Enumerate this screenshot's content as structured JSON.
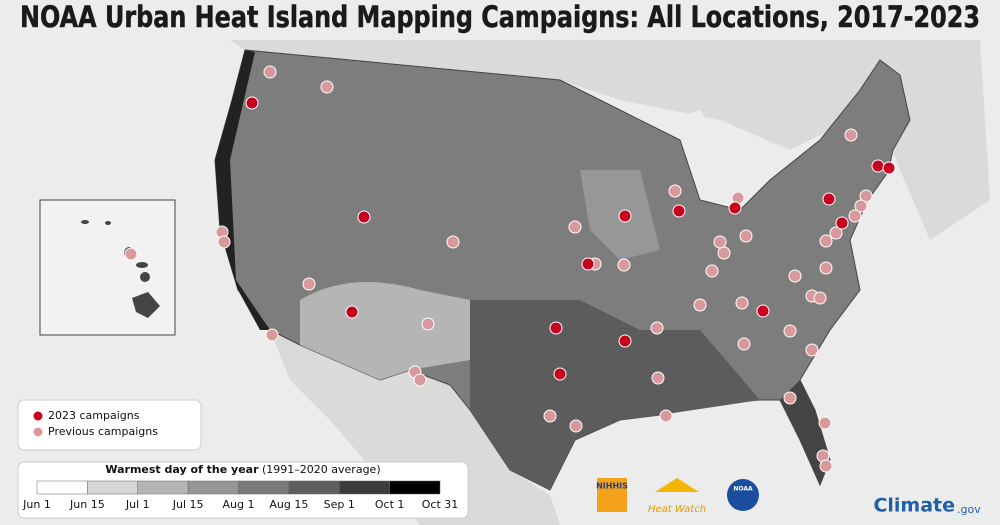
{
  "title": "NOAA Urban Heat Island Mapping Campaigns: All Locations, 2017-2023",
  "legend": {
    "items": [
      {
        "label": "2023 campaigns",
        "color": "#c8001e"
      },
      {
        "label": "Previous campaigns",
        "color": "#d9999c"
      }
    ]
  },
  "colorbar": {
    "title": "Warmest day of the year",
    "subtitle": "(1991–2020 average)",
    "labels": [
      "Jun 1",
      "Jun 15",
      "Jul 1",
      "Jul 15",
      "Aug 1",
      "Aug 15",
      "Sep 1",
      "Oct 1",
      "Oct 31"
    ],
    "colors": [
      "#ffffff",
      "#d6d6d6",
      "#b4b4b4",
      "#969696",
      "#7a7a7a",
      "#5e5e5e",
      "#3c3c3c",
      "#000000"
    ]
  },
  "logos": {
    "nihhis": "NIHHIS",
    "heatwatch": "Heat Watch",
    "noaa": "NOAA"
  },
  "credit": {
    "main": "Climate",
    "suffix": ".gov"
  }
}
